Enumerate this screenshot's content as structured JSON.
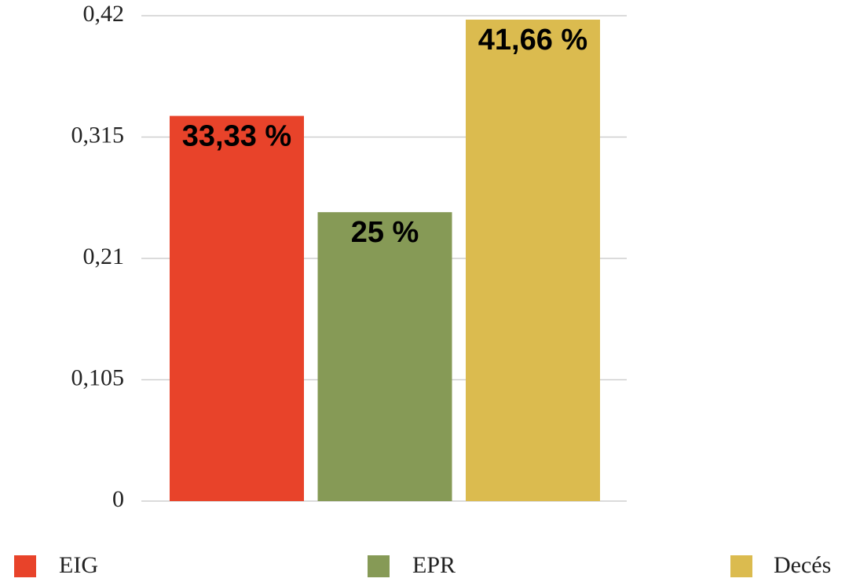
{
  "chart_data": {
    "type": "bar",
    "series": [
      {
        "name": "EIG",
        "color": "#e8432a",
        "values": [
          0.3333
        ],
        "value_labels": [
          "33,33 %"
        ]
      },
      {
        "name": "EPR",
        "color": "#869a56",
        "values": [
          0.25
        ],
        "value_labels": [
          "25 %"
        ]
      },
      {
        "name": "Decés",
        "color": "#dbbb4f",
        "values": [
          0.4166
        ],
        "value_labels": [
          "41,66 %"
        ]
      }
    ],
    "ylim": [
      0,
      0.42
    ],
    "yticks": [
      0,
      {
        "value": 0.105,
        "label": "0,105"
      },
      {
        "value": 0.21,
        "label": "0,21"
      },
      {
        "value": 0.315,
        "label": "0,315"
      },
      {
        "value": 0.42,
        "label": "0,42"
      }
    ],
    "grid": true,
    "legend": "bottom"
  }
}
